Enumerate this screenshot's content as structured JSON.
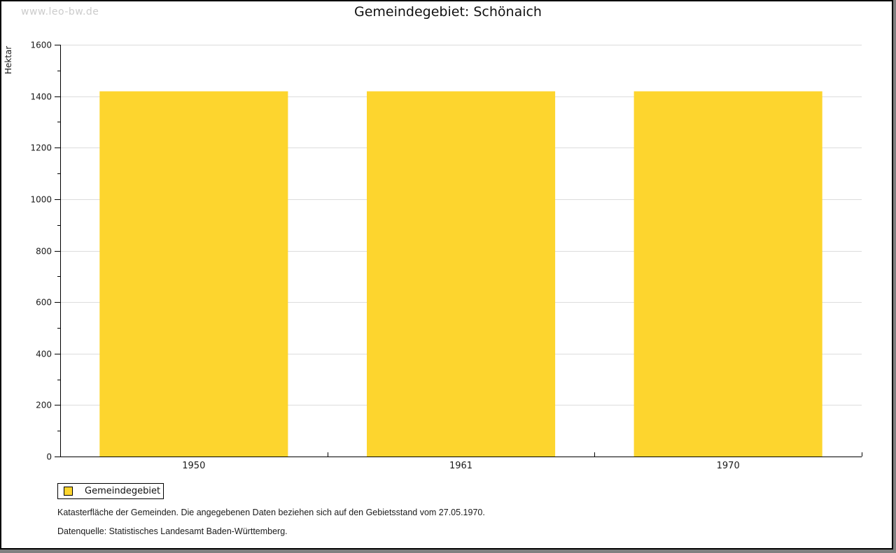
{
  "watermark": "www.leo-bw.de",
  "title": "Gemeindegebiet: Schönaich",
  "chart_data": {
    "type": "bar",
    "title": "Gemeindegebiet: Schönaich",
    "xlabel": "",
    "ylabel": "Hektar",
    "categories": [
      "1950",
      "1961",
      "1970"
    ],
    "series": [
      {
        "name": "Gemeindegebiet",
        "values": [
          1419,
          1419,
          1419
        ]
      }
    ],
    "ylim": [
      0,
      1600
    ],
    "ytick_step": 200,
    "minor_tick_step": 100,
    "grid": true,
    "legend_position": "bottom-left",
    "bar_color": "#fdd52e"
  },
  "legend": {
    "items": [
      {
        "label": "Gemeindegebiet",
        "color": "#fdd52e"
      }
    ]
  },
  "footnotes": [
    "Katasterfläche der Gemeinden. Die angegebenen Daten beziehen sich auf den Gebietsstand vom 27.05.1970.",
    "Datenquelle: Statistisches Landesamt Baden-Württemberg."
  ],
  "colors": {
    "bar": "#fdd52e",
    "grid": "#dcdcdc",
    "axis": "#000000",
    "watermark": "#cccccc",
    "frame_shadow": "#808080"
  }
}
